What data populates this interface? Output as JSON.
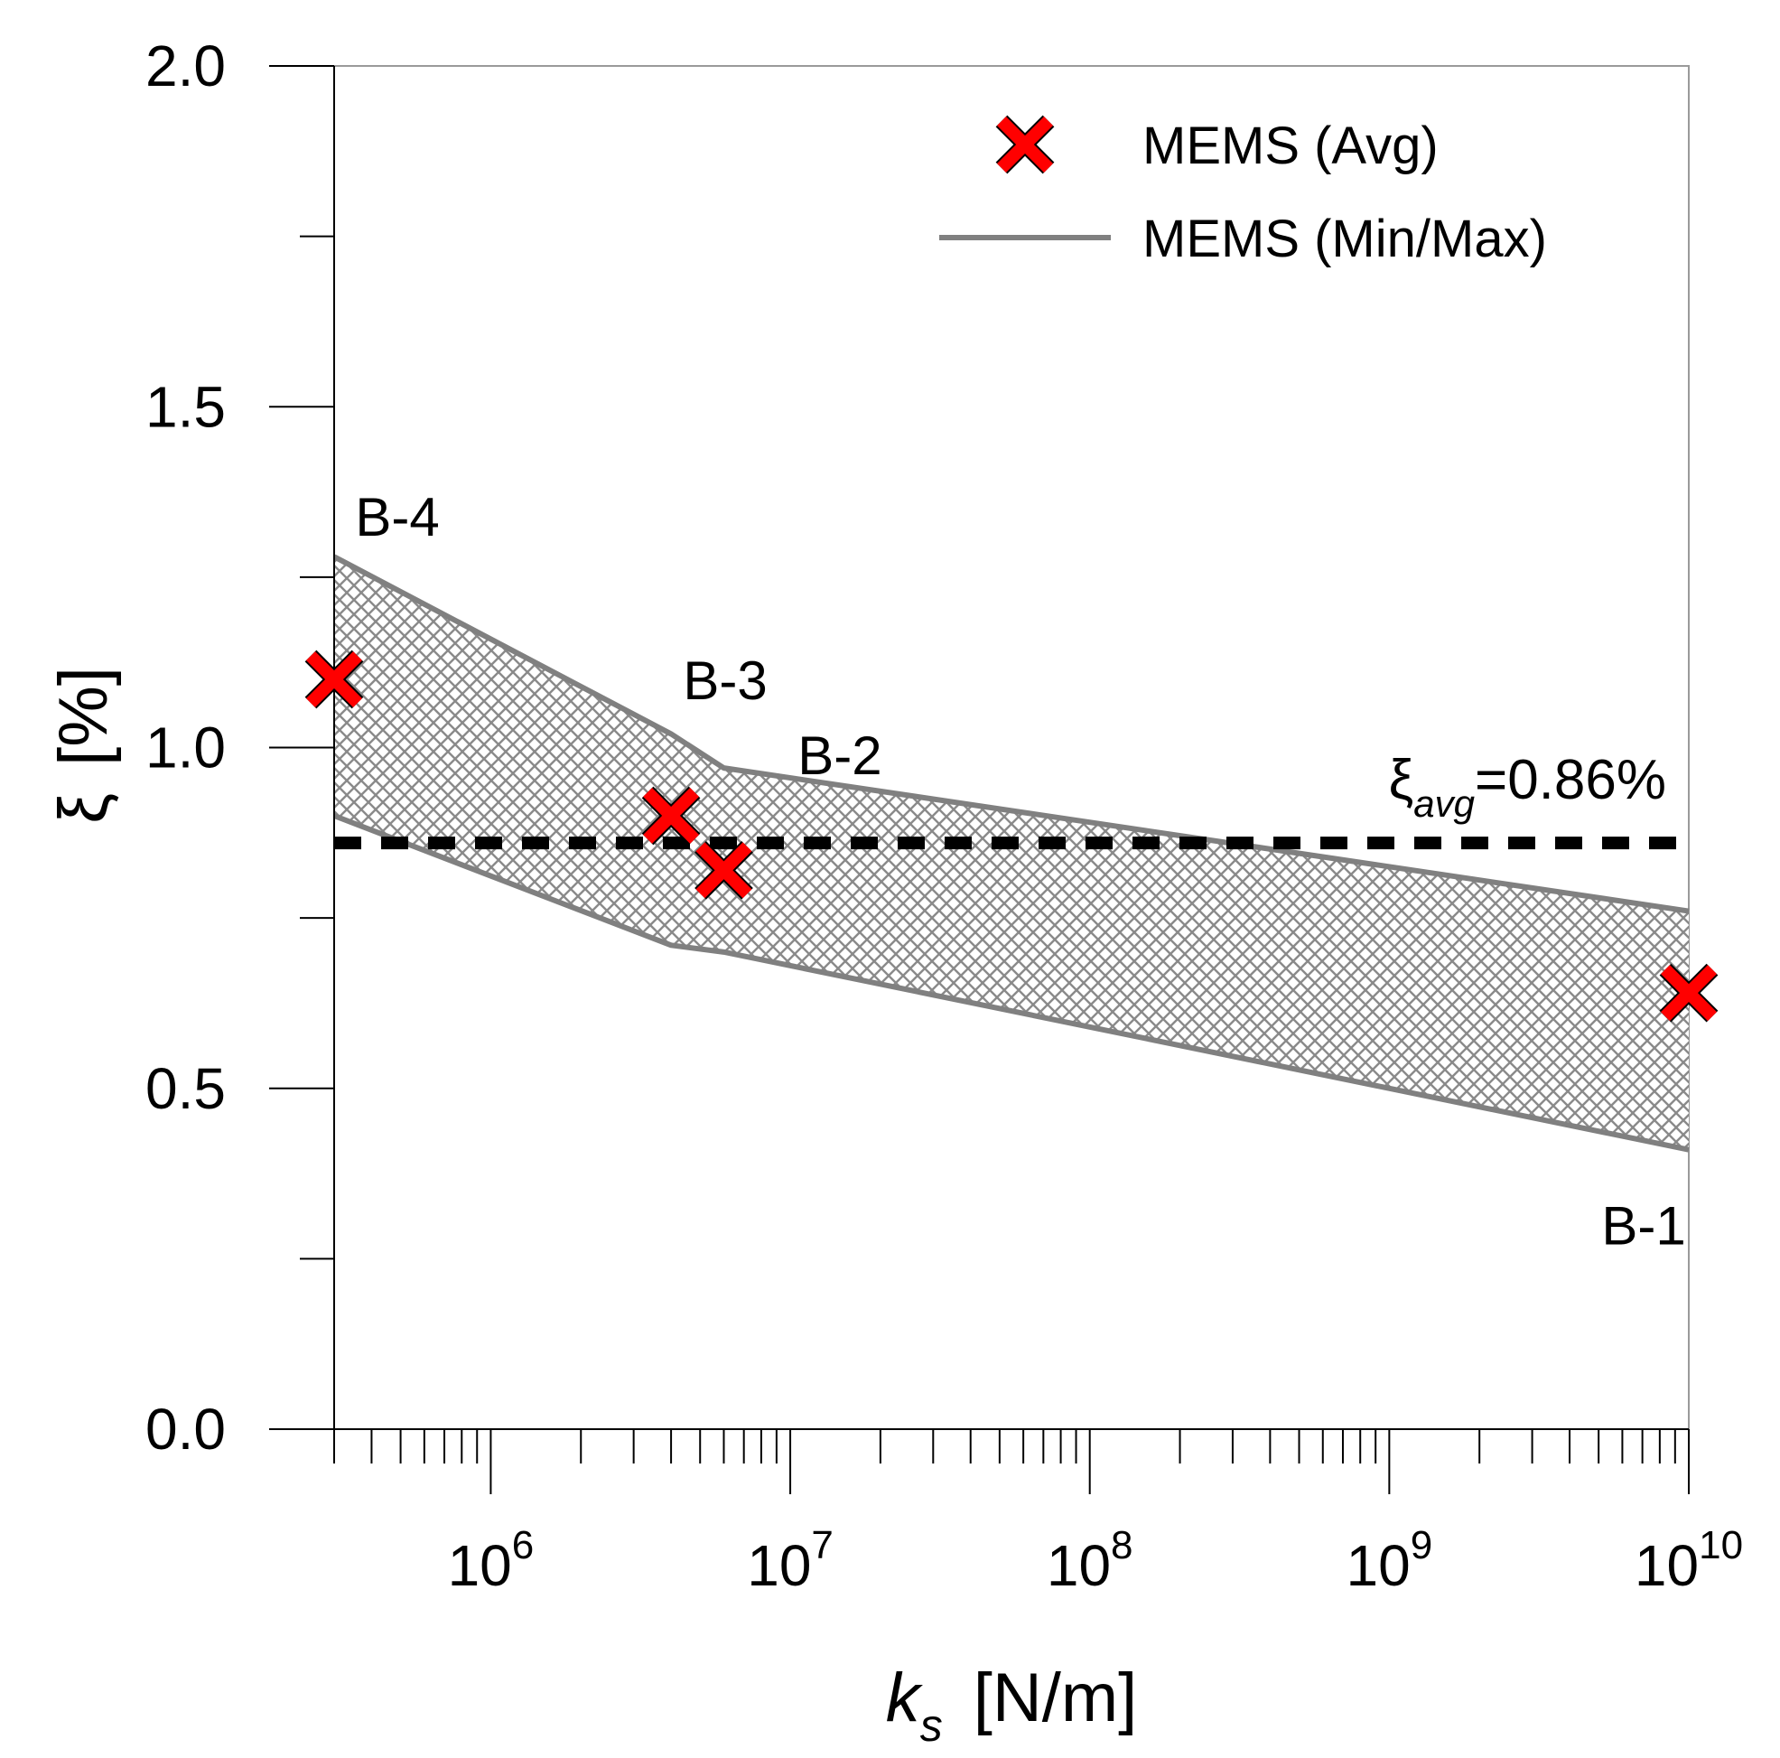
{
  "chart_data": {
    "type": "line",
    "title": "",
    "xlabel": "k",
    "xlabel_sub": "s",
    "xlabel_unit": "[N/m]",
    "ylabel": "ξ",
    "ylabel_unit": "[%]",
    "x_scale": "log",
    "xlim": [
      300000,
      10000000000
    ],
    "ylim": [
      0,
      2.0
    ],
    "y_ticks": [
      "0.0",
      "0.5",
      "1.0",
      "1.5",
      "2.0"
    ],
    "y_tick_values": [
      0,
      0.5,
      1.0,
      1.5,
      2.0
    ],
    "x_ticks": [
      {
        "base": "10",
        "exp": "6",
        "value": 1000000
      },
      {
        "base": "10",
        "exp": "7",
        "value": 10000000
      },
      {
        "base": "10",
        "exp": "8",
        "value": 100000000
      },
      {
        "base": "10",
        "exp": "9",
        "value": 1000000000
      },
      {
        "base": "10",
        "exp": "10",
        "value": 10000000000
      }
    ],
    "series": [
      {
        "name": "MEMS (Avg)",
        "marker": "x",
        "color": "#ff0000",
        "x": [
          300000,
          4000000,
          6000000,
          10000000000
        ],
        "y": [
          1.1,
          0.9,
          0.82,
          0.64
        ]
      },
      {
        "name": "MEMS (Min/Max) upper",
        "color": "#808080",
        "x": [
          300000,
          4000000,
          6000000,
          10000000000
        ],
        "y": [
          1.28,
          1.02,
          0.97,
          0.76
        ]
      },
      {
        "name": "MEMS (Min/Max) lower",
        "color": "#808080",
        "x": [
          300000,
          4000000,
          6000000,
          10000000000
        ],
        "y": [
          0.9,
          0.71,
          0.7,
          0.41
        ]
      }
    ],
    "reference_line": {
      "y": 0.86,
      "symbol": "ξ",
      "sub": "avg",
      "text": "=0.86%"
    },
    "legend": {
      "position": "top-right",
      "entries": [
        {
          "label": "MEMS (Avg)",
          "type": "marker",
          "color": "#ff0000"
        },
        {
          "label": "MEMS (Min/Max)",
          "type": "line",
          "color": "#808080"
        }
      ]
    },
    "annotations": [
      {
        "text": "B-4",
        "x": 300000,
        "y": 1.34
      },
      {
        "text": "B-3",
        "x": 4000000,
        "y": 1.1
      },
      {
        "text": "B-2",
        "x": 9000000,
        "y": 0.99
      },
      {
        "text": "B-1",
        "x": 10000000000,
        "y": 0.3
      }
    ]
  }
}
